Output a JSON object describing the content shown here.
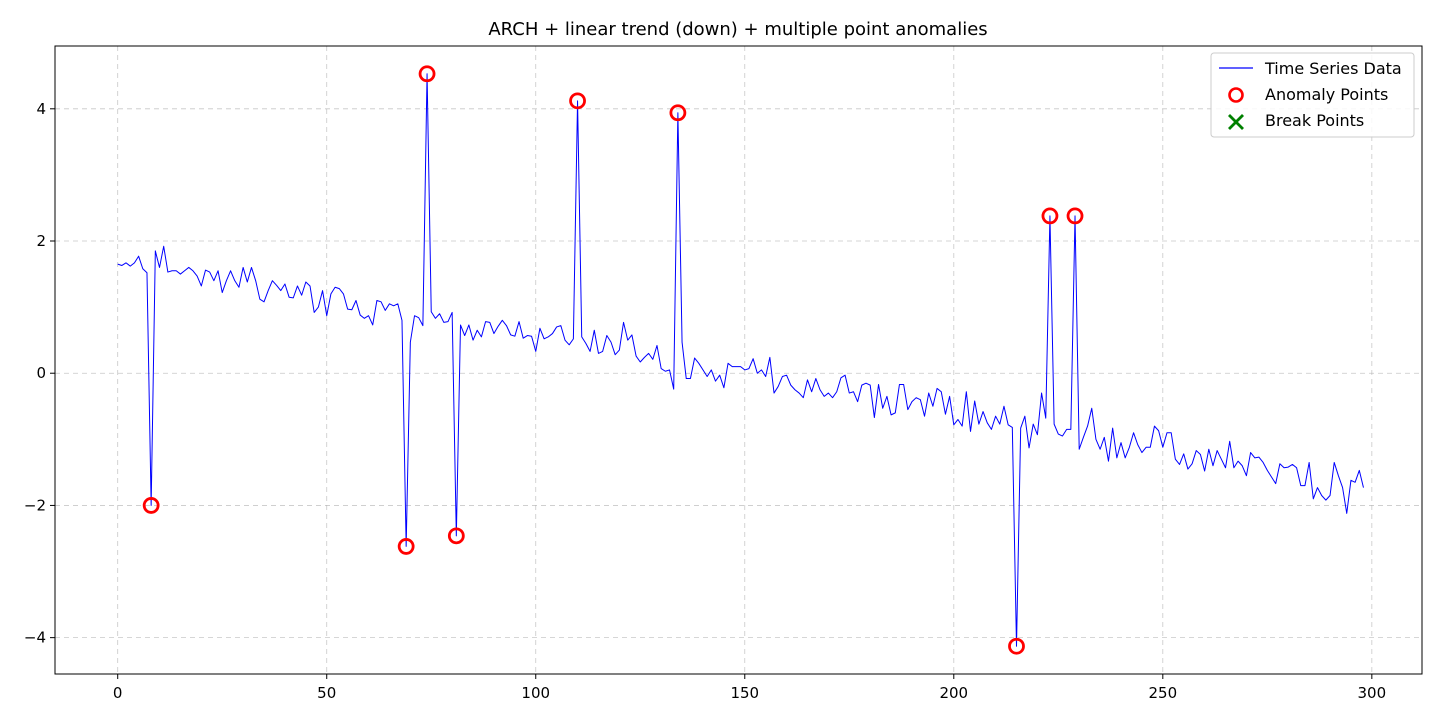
{
  "chart_data": {
    "type": "line",
    "title": "ARCH + linear trend (down) + multiple point anomalies",
    "xlabel": "",
    "ylabel": "",
    "xlim": [
      -15,
      312
    ],
    "ylim": [
      -4.55,
      4.95
    ],
    "x_ticks": [
      0,
      50,
      100,
      150,
      200,
      250,
      300
    ],
    "y_ticks": [
      -4,
      -2,
      0,
      2,
      4
    ],
    "grid": true,
    "legend_position": "top-right",
    "series": [
      {
        "name": "Time Series Data",
        "color": "#0000ff",
        "x_start": 0,
        "values": [
          1.65,
          1.63,
          1.67,
          1.62,
          1.67,
          1.77,
          1.58,
          1.52,
          -2.0,
          1.85,
          1.6,
          1.92,
          1.53,
          1.55,
          1.55,
          1.5,
          1.55,
          1.6,
          1.55,
          1.47,
          1.32,
          1.56,
          1.53,
          1.4,
          1.55,
          1.22,
          1.4,
          1.55,
          1.4,
          1.3,
          1.6,
          1.38,
          1.6,
          1.4,
          1.12,
          1.08,
          1.25,
          1.4,
          1.33,
          1.25,
          1.35,
          1.15,
          1.14,
          1.32,
          1.18,
          1.38,
          1.32,
          0.92,
          1.0,
          1.25,
          0.87,
          1.2,
          1.3,
          1.28,
          1.2,
          0.97,
          0.96,
          1.1,
          0.88,
          0.83,
          0.87,
          0.73,
          1.1,
          1.08,
          0.95,
          1.05,
          1.02,
          1.05,
          0.8,
          -2.62,
          0.47,
          0.87,
          0.84,
          0.72,
          4.53,
          0.93,
          0.83,
          0.9,
          0.77,
          0.78,
          0.92,
          -2.46,
          0.73,
          0.57,
          0.73,
          0.5,
          0.65,
          0.55,
          0.78,
          0.77,
          0.6,
          0.71,
          0.8,
          0.72,
          0.58,
          0.56,
          0.78,
          0.53,
          0.57,
          0.56,
          0.33,
          0.68,
          0.52,
          0.55,
          0.6,
          0.7,
          0.72,
          0.5,
          0.43,
          0.52,
          4.12,
          0.55,
          0.45,
          0.33,
          0.65,
          0.3,
          0.33,
          0.57,
          0.47,
          0.28,
          0.35,
          0.77,
          0.5,
          0.58,
          0.26,
          0.17,
          0.24,
          0.3,
          0.21,
          0.42,
          0.07,
          0.03,
          0.05,
          -0.24,
          3.94,
          0.47,
          -0.08,
          -0.08,
          0.23,
          0.15,
          0.05,
          -0.05,
          0.05,
          -0.12,
          -0.03,
          -0.22,
          0.15,
          0.1,
          0.1,
          0.1,
          0.05,
          0.07,
          0.22,
          0.0,
          0.05,
          -0.05,
          0.24,
          -0.3,
          -0.2,
          -0.05,
          -0.03,
          -0.18,
          -0.25,
          -0.3,
          -0.37,
          -0.1,
          -0.28,
          -0.08,
          -0.25,
          -0.35,
          -0.3,
          -0.37,
          -0.28,
          -0.07,
          -0.03,
          -0.3,
          -0.28,
          -0.43,
          -0.18,
          -0.15,
          -0.18,
          -0.67,
          -0.17,
          -0.53,
          -0.35,
          -0.63,
          -0.6,
          -0.17,
          -0.17,
          -0.55,
          -0.43,
          -0.37,
          -0.4,
          -0.65,
          -0.3,
          -0.5,
          -0.23,
          -0.28,
          -0.62,
          -0.35,
          -0.78,
          -0.7,
          -0.8,
          -0.28,
          -0.88,
          -0.42,
          -0.77,
          -0.58,
          -0.75,
          -0.85,
          -0.65,
          -0.77,
          -0.5,
          -0.78,
          -0.82,
          -4.13,
          -0.83,
          -0.65,
          -1.13,
          -0.77,
          -0.93,
          -0.3,
          -0.68,
          2.38,
          -0.77,
          -0.92,
          -0.95,
          -0.85,
          -0.85,
          2.38,
          -1.15,
          -0.97,
          -0.8,
          -0.53,
          -1.0,
          -1.15,
          -0.97,
          -1.33,
          -0.83,
          -1.28,
          -1.05,
          -1.28,
          -1.12,
          -0.9,
          -1.08,
          -1.2,
          -1.12,
          -1.12,
          -0.8,
          -0.87,
          -1.12,
          -0.9,
          -0.9,
          -1.3,
          -1.38,
          -1.22,
          -1.45,
          -1.37,
          -1.17,
          -1.23,
          -1.48,
          -1.15,
          -1.4,
          -1.17,
          -1.3,
          -1.43,
          -1.03,
          -1.43,
          -1.33,
          -1.4,
          -1.55,
          -1.2,
          -1.28,
          -1.27,
          -1.35,
          -1.47,
          -1.57,
          -1.67,
          -1.37,
          -1.43,
          -1.42,
          -1.38,
          -1.43,
          -1.7,
          -1.7,
          -1.35,
          -1.9,
          -1.73,
          -1.85,
          -1.92,
          -1.85,
          -1.35,
          -1.55,
          -1.73,
          -2.12,
          -1.62,
          -1.65,
          -1.47,
          -1.73
        ]
      },
      {
        "name": "Anomaly Points",
        "color": "#ff0000",
        "marker": "circle-open",
        "points": [
          {
            "x": 8,
            "y": -2.0
          },
          {
            "x": 69,
            "y": -2.62
          },
          {
            "x": 74,
            "y": 4.53
          },
          {
            "x": 81,
            "y": -2.46
          },
          {
            "x": 110,
            "y": 4.12
          },
          {
            "x": 134,
            "y": 3.94
          },
          {
            "x": 215,
            "y": -4.13
          },
          {
            "x": 223,
            "y": 2.38
          },
          {
            "x": 229,
            "y": 2.38
          }
        ]
      },
      {
        "name": "Break Points",
        "color": "#008000",
        "marker": "x",
        "points": []
      }
    ]
  }
}
